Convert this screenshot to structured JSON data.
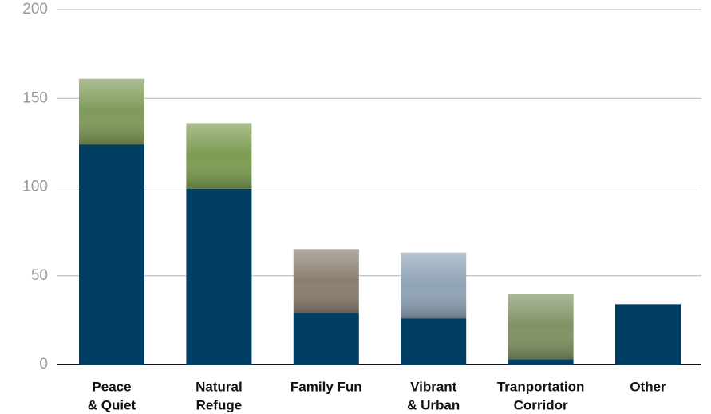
{
  "chart_data": {
    "type": "bar",
    "categories": [
      [
        "Peace",
        "& Quiet"
      ],
      [
        "Natural",
        "Refuge"
      ],
      [
        "Family Fun"
      ],
      [
        "Vibrant",
        "& Urban"
      ],
      [
        "Tranportation",
        "Corridor"
      ],
      [
        "Other"
      ]
    ],
    "series": [
      {
        "color": "#003f63",
        "values": [
          124,
          99,
          29,
          26,
          3,
          34
        ]
      },
      {
        "colors": [
          "#7f9a5a",
          "#7c9b52",
          "#8a7d6e",
          "#8fa3b5",
          "#7f9262",
          null
        ],
        "values": [
          37,
          37,
          36,
          37,
          37,
          null
        ]
      }
    ],
    "ylim": [
      0,
      200
    ],
    "yticks": [
      0,
      50,
      100,
      150,
      200
    ],
    "grid": true
  }
}
